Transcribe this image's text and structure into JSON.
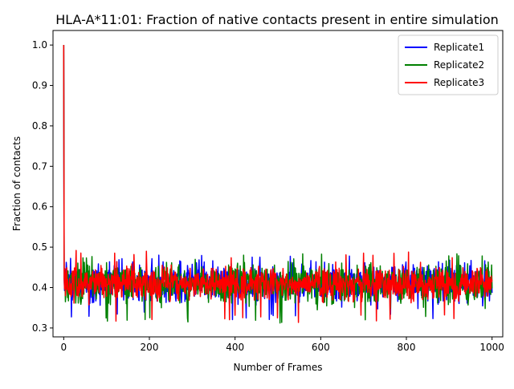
{
  "chart_data": {
    "type": "line",
    "title": "HLA-A*11:01: Fraction of native contacts present in entire simulation",
    "xlabel": "Number of Frames",
    "ylabel": "Fraction of contacts",
    "xlim": [
      -25,
      1025
    ],
    "ylim": [
      0.278,
      1.036
    ],
    "xticks": [
      0,
      200,
      400,
      600,
      800,
      1000
    ],
    "xtick_labels": [
      "0",
      "200",
      "400",
      "600",
      "800",
      "1000"
    ],
    "yticks": [
      0.3,
      0.4,
      0.5,
      0.6,
      0.7,
      0.8,
      0.9,
      1.0
    ],
    "ytick_labels": [
      "0.3",
      "0.4",
      "0.5",
      "0.6",
      "0.7",
      "0.8",
      "0.9",
      "1.0"
    ],
    "grid": false,
    "legend_position": "top-right",
    "x_range": [
      0,
      1000
    ],
    "series": [
      {
        "name": "Replicate1",
        "color": "#0000ff",
        "start_value": 1.0,
        "typical_center": 0.41,
        "typical_band": [
          0.36,
          0.46
        ],
        "min": 0.32,
        "max": 0.482
      },
      {
        "name": "Replicate2",
        "color": "#008000",
        "start_value": 1.0,
        "typical_center": 0.41,
        "typical_band": [
          0.36,
          0.46
        ],
        "min": 0.312,
        "max": 0.49
      },
      {
        "name": "Replicate3",
        "color": "#ff0000",
        "start_value": 1.0,
        "typical_center": 0.41,
        "typical_band": [
          0.37,
          0.455
        ],
        "min": 0.313,
        "max": 0.492
      }
    ]
  }
}
